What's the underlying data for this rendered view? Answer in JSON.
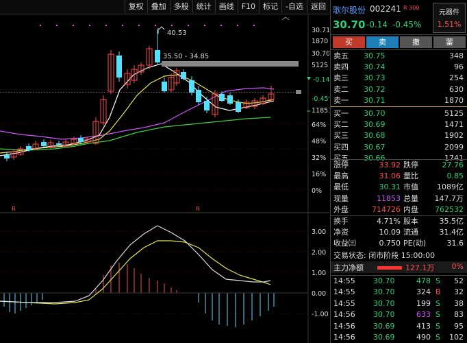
{
  "toolbar": {
    "buttons": [
      "复权",
      "叠加",
      "多股",
      "统计",
      "画线",
      "F10",
      "标记",
      "-自选",
      "返回"
    ]
  },
  "chart_main": {
    "annotations": {
      "high_label": "40.53",
      "range_label": "35.50 - 34.85"
    },
    "price_axis": {
      "top_price": "30.71",
      "top_vol": "1870",
      "price": "30.70",
      "vol": "5125",
      "change": "-0.14",
      "pct": "-0.45%",
      "cur_vol": "11853"
    },
    "pct_axis": [
      "64%",
      "48%",
      "32%",
      "16%",
      "0%"
    ]
  },
  "chart_macd": {
    "axis": [
      "3.00",
      "2.00",
      "1.00",
      "0.00",
      "-1.00"
    ]
  },
  "colors": {
    "up": "#ff4d4d",
    "down": "#27d27a",
    "ma5": "#ffffff",
    "ma10": "#e8e84a",
    "ma20": "#d154ff",
    "ma60": "#3ad43a",
    "candle_down_fill": "#54e1ff",
    "dotted": "#ff40ff"
  },
  "quote": {
    "name": "歌尔股份",
    "code": "002241",
    "badge": "R",
    "badge_sub": "300",
    "price": "30.70",
    "change": "-0.14",
    "pct": "-0.45%",
    "tag_label": "元器件",
    "tag_value": "1.51%"
  },
  "trade_buttons": {
    "buy": "买",
    "sell": "卖",
    "cancel": "撤",
    "order": "蓥"
  },
  "asks": [
    {
      "label": "卖五",
      "price": "30.75",
      "vol": "348"
    },
    {
      "label": "卖四",
      "price": "30.74",
      "vol": "96"
    },
    {
      "label": "卖三",
      "price": "30.73",
      "vol": "254"
    },
    {
      "label": "卖二",
      "price": "30.72",
      "vol": "630"
    },
    {
      "label": "卖一",
      "price": "30.71",
      "vol": "1870"
    }
  ],
  "bids": [
    {
      "label": "买一",
      "price": "30.70",
      "vol": "5125"
    },
    {
      "label": "买二",
      "price": "30.69",
      "vol": "1471"
    },
    {
      "label": "买三",
      "price": "30.68",
      "vol": "1902"
    },
    {
      "label": "买四",
      "price": "30.67",
      "vol": "2099"
    },
    {
      "label": "买五",
      "price": "30.66",
      "vol": "1741"
    }
  ],
  "stats1": [
    {
      "k1": "涨停",
      "v1": "33.92",
      "c1": "red",
      "k2": "跌停",
      "v2": "27.76",
      "c2": "green"
    },
    {
      "k1": "最高",
      "v1": "31.06",
      "c1": "red",
      "k2": "量比",
      "v2": "0.85",
      "c2": "green"
    },
    {
      "k1": "最低",
      "v1": "30.31",
      "c1": "green",
      "k2": "市值",
      "v2": "1089亿",
      "c2": "white"
    },
    {
      "k1": "现量",
      "v1": "11853",
      "c1": "purple",
      "k2": "总量",
      "v2": "147.7万",
      "c2": "white"
    },
    {
      "k1": "外盘",
      "v1": "714726",
      "c1": "red",
      "k2": "内盘",
      "v2": "762532",
      "c2": "green"
    }
  ],
  "stats2": [
    {
      "k1": "换手",
      "v1": "4.71%",
      "c1": "white",
      "k2": "股本",
      "v2": "35.5亿",
      "c2": "white"
    },
    {
      "k1": "净资",
      "v1": "10.09",
      "c1": "white",
      "k2": "流通",
      "v2": "31.4亿",
      "c2": "white"
    },
    {
      "k1": "收益㈢",
      "v1": "0.750",
      "c1": "white",
      "k2": "PE(动)",
      "v2": "31.6",
      "c2": "white"
    }
  ],
  "status": "交易状态: 闭市阶段 15:00:00",
  "netflow": {
    "label": "主力净额",
    "value": "127.1万",
    "pct": "0%"
  },
  "ticks": [
    {
      "t": "14:55",
      "p": "30.70",
      "v": "478",
      "vc": "green",
      "f": "S",
      "fc": "green",
      "n": "52"
    },
    {
      "t": "14:55",
      "p": "30.70",
      "v": "324",
      "vc": "white",
      "f": "B",
      "fc": "red",
      "n": "32"
    },
    {
      "t": "14:55",
      "p": "30.70",
      "v": "199",
      "vc": "white",
      "f": "S",
      "fc": "green",
      "n": "38"
    },
    {
      "t": "14:56",
      "p": "30.70",
      "v": "633",
      "vc": "purple",
      "f": "S",
      "fc": "green",
      "n": "83"
    },
    {
      "t": "14:56",
      "p": "30.69",
      "v": "413",
      "vc": "white",
      "f": "S",
      "fc": "green",
      "n": "95"
    },
    {
      "t": "14:56",
      "p": "30.69",
      "v": "490",
      "vc": "white",
      "f": "S",
      "fc": "green",
      "n": "102"
    }
  ]
}
